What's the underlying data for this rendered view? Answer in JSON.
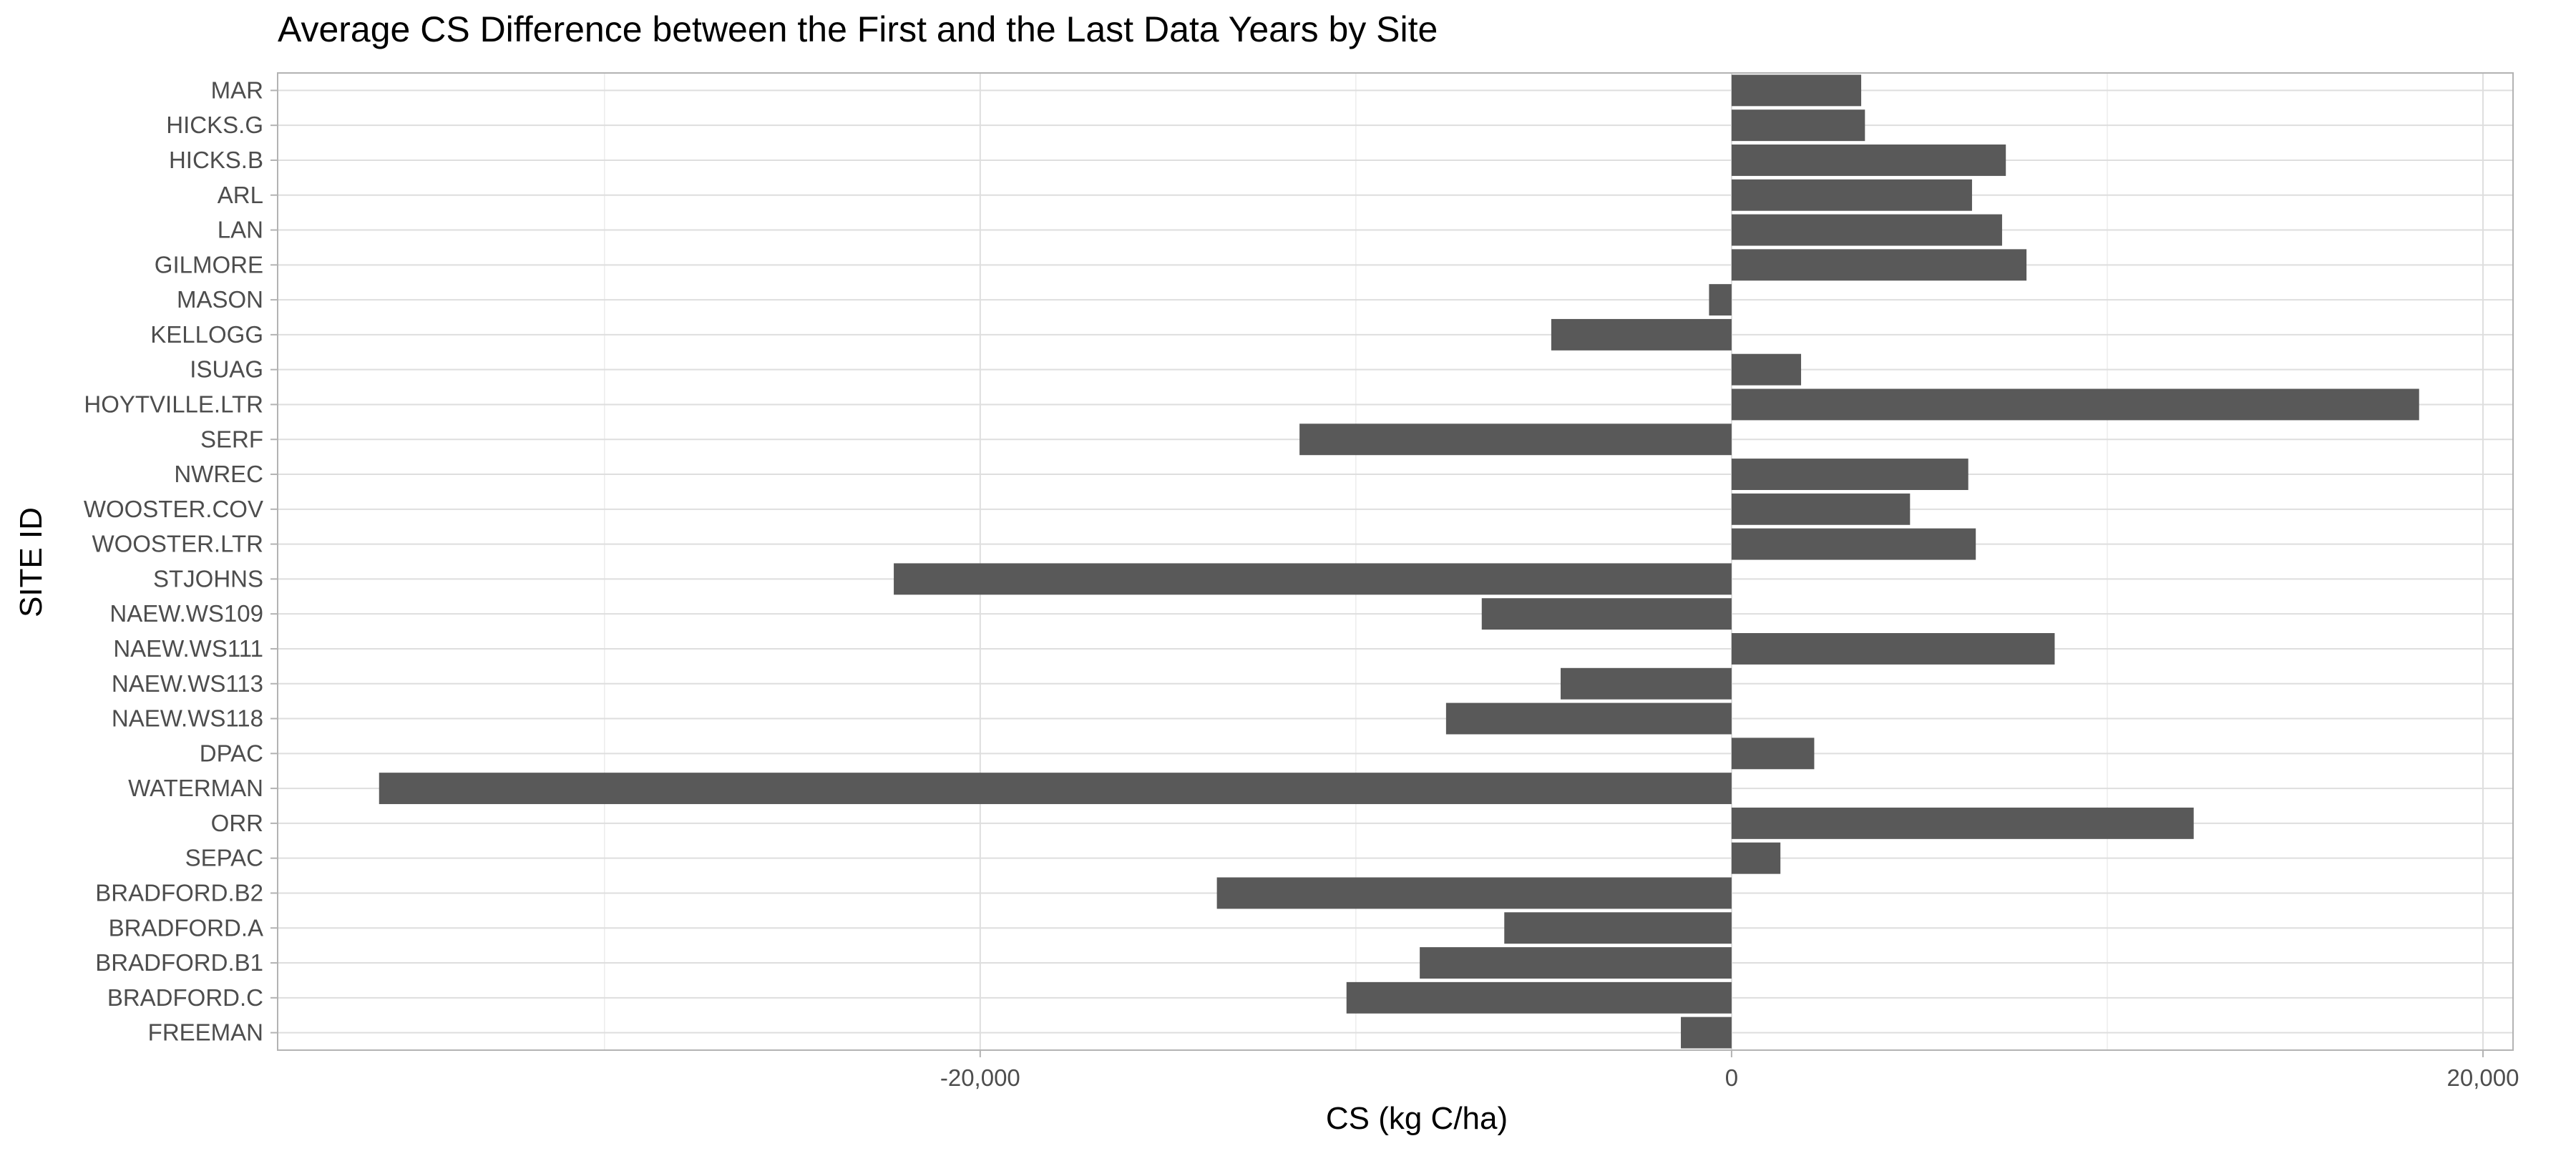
{
  "chart_data": {
    "type": "bar",
    "orientation": "horizontal",
    "title": "Average CS Difference between the First and the Last Data Years by Site",
    "xlabel": "CS (kg C/ha)",
    "ylabel": "SITE ID",
    "xlim": [
      -38700,
      20800
    ],
    "xticks": [
      -20000,
      0,
      20000
    ],
    "xtick_labels": [
      "-20,000",
      "0",
      "20,000"
    ],
    "minor_xticks": [
      -30000,
      -10000,
      10000
    ],
    "grid": true,
    "bar_color": "#595959",
    "categories": [
      "MAR",
      "HICKS.G",
      "HICKS.B",
      "ARL",
      "LAN",
      "GILMORE",
      "MASON",
      "KELLOGG",
      "ISUAG",
      "HOYTVILLE.LTR",
      "SERF",
      "NWREC",
      "WOOSTER.COV",
      "WOOSTER.LTR",
      "STJOHNS",
      "NAEW.WS109",
      "NAEW.WS111",
      "NAEW.WS113",
      "NAEW.WS118",
      "DPAC",
      "WATERMAN",
      "ORR",
      "SEPAC",
      "BRADFORD.B2",
      "BRADFORD.A",
      "BRADFORD.B1",
      "BRADFORD.C",
      "FREEMAN"
    ],
    "values": [
      3450,
      3550,
      7300,
      6400,
      7200,
      7850,
      -600,
      -4800,
      1850,
      18300,
      -11500,
      6300,
      4750,
      6500,
      -22300,
      -6650,
      8600,
      -4550,
      -7600,
      2200,
      -36000,
      12300,
      1300,
      -13700,
      -6050,
      -8300,
      -10250,
      -1350
    ]
  }
}
